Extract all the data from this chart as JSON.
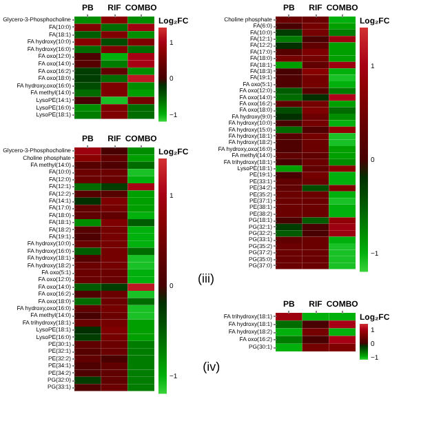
{
  "chart_data": [
    {
      "type": "heatmap",
      "clabel": "Log₂FC",
      "clim": [
        -1.2,
        1.4
      ],
      "cticks": [
        -1,
        0,
        1
      ],
      "categories": [
        "PB",
        "RIF",
        "COMBO"
      ],
      "y_categories": [
        "Glycero-3-Phosphocholine",
        "FA(10:0)",
        "FA(18:1)",
        "FA hydroxy(10:0)",
        "FA hydroxy(16:0)",
        "FA oxo(12:0)",
        "FA oxo(14:0)",
        "FA oxo(16:2)",
        "FA oxo(18:0)",
        "FA hydroxy,oxo(16:0)",
        "FA methyl(14:0)",
        "LysoPE(14:1)",
        "LysoPE(16:0)",
        "LysoPE(18:1)"
      ],
      "cells": [
        [
          -0.8,
          0.7,
          -0.8
        ],
        [
          0.6,
          -0.6,
          0.9
        ],
        [
          -0.5,
          0.6,
          -0.8
        ],
        [
          0.7,
          -0.4,
          0.6
        ],
        [
          -0.6,
          0.6,
          -0.6
        ],
        [
          0.1,
          -1.0,
          1.0
        ],
        [
          0.2,
          -0.7,
          1.0
        ],
        [
          -0.3,
          0.3,
          -0.8
        ],
        [
          -0.3,
          -0.6,
          1.2
        ],
        [
          -0.4,
          0.6,
          -0.8
        ],
        [
          -0.6,
          0.6,
          -0.9
        ],
        [
          0.0,
          -1.1,
          0.5
        ],
        [
          -0.8,
          0.6,
          -0.6
        ],
        [
          -0.7,
          0.6,
          -0.6
        ]
      ]
    },
    {
      "type": "heatmap",
      "clabel": "Log₂FC",
      "clim": [
        -1.2,
        1.4
      ],
      "cticks": [
        -1,
        0,
        1
      ],
      "categories": [
        "PB",
        "RIF",
        "COMBO"
      ],
      "y_categories": [
        "Glycero-3-Phosphocholine",
        "Choline phosphate",
        "FA methyl(14:0)",
        "FA(10:0)",
        "FA(12:0)",
        "FA(12:1)",
        "FA(12:2)",
        "FA(14:1)",
        "FA(17:0)",
        "FA(18:0)",
        "FA(18:1)",
        "FA(18:2)",
        "FA(19:1)",
        "FA hydroxy(10:0)",
        "FA hydroxy(16:0)",
        "FA hydroxy(18:1)",
        "FA hydroxy(18:2)",
        "FA oxo(5:1)",
        "FA oxo(12:0)",
        "FA oxo(14:0)",
        "FA oxo(16:2)",
        "FA oxo(18:0)",
        "FA hydroxy,oxo(16:0)",
        "FA methyl(14:0) ",
        "FA trihydroxy(18:1)",
        "LysoPE(18:1)",
        "LysoPE(16:0)",
        "PE(30:1)",
        "PE(32:1)",
        "PE(32:2)",
        "PE(34:1)",
        "PE(34:2)",
        "PG(32:0)",
        "PG(33:1)"
      ],
      "cells": [
        [
          0.9,
          0.0,
          -0.8
        ],
        [
          0.7,
          0.3,
          -0.9
        ],
        [
          0.2,
          0.1,
          -0.6
        ],
        [
          0.4,
          0.4,
          -1.1
        ],
        [
          0.4,
          0.4,
          -1.0
        ],
        [
          -0.6,
          -0.3,
          1.0
        ],
        [
          0.2,
          0.2,
          -0.9
        ],
        [
          -0.2,
          0.6,
          -0.9
        ],
        [
          0.3,
          0.5,
          -0.9
        ],
        [
          0.3,
          0.3,
          -1.0
        ],
        [
          -0.8,
          0.6,
          -0.5
        ],
        [
          0.2,
          0.5,
          -1.0
        ],
        [
          0.1,
          0.5,
          -1.0
        ],
        [
          0.4,
          0.5,
          -1.0
        ],
        [
          -0.5,
          0.5,
          -0.6
        ],
        [
          0.2,
          0.5,
          -1.1
        ],
        [
          0.4,
          0.5,
          -1.1
        ],
        [
          0.4,
          0.4,
          -1.0
        ],
        [
          0.4,
          0.4,
          -1.0
        ],
        [
          -0.5,
          -0.3,
          1.2
        ],
        [
          0.1,
          0.4,
          -1.1
        ],
        [
          -0.6,
          0.4,
          -0.6
        ],
        [
          0.3,
          0.5,
          -1.1
        ],
        [
          0.0,
          0.4,
          -1.1
        ],
        [
          0.4,
          0.5,
          -0.9
        ],
        [
          -0.2,
          0.6,
          -0.9
        ],
        [
          -0.3,
          0.5,
          -0.9
        ],
        [
          0.3,
          0.4,
          -0.7
        ],
        [
          0.2,
          0.4,
          -0.7
        ],
        [
          0.3,
          0.0,
          -0.7
        ],
        [
          0.1,
          0.3,
          -0.7
        ],
        [
          0.1,
          0.3,
          -0.7
        ],
        [
          -0.3,
          0.3,
          -0.7
        ],
        [
          0.1,
          0.4,
          -0.7
        ]
      ]
    },
    {
      "type": "heatmap",
      "title": "(iii)",
      "clabel": "Log₂FC",
      "clim": [
        -1.2,
        1.4
      ],
      "cticks": [
        -1,
        0,
        1
      ],
      "categories": [
        "PB",
        "RIF",
        "COMBO"
      ],
      "y_categories": [
        "Choline phosphate",
        "FA(6:0)",
        "FA(10:0)",
        "FA(12:1)",
        "FA(12:2)",
        "FA(17:0)",
        "FA(18:0)",
        "FA(18:1)",
        "FA(18:3)",
        "FA(19:1)",
        "FA oxo(5:1)",
        "FA oxo(12:0)",
        "FA oxo(14:0)",
        "FA oxo(16:2)",
        "FA oxo(18:0)",
        "FA hydroxy(9:0)",
        "FA hydroxy(10:0)",
        "FA hydroxy(15:0)",
        "FA hydroxy(18:1)",
        "FA hydroxy(18:2)",
        "FA hydroxy,oxo(16:0)",
        "FA methyl(14:0)",
        "FA trihydroxy(18:1)",
        "LysoPE(18:1)",
        "PE(19:1)",
        "PE(33:1)",
        "PE(34:2)",
        "PE(35:2)",
        "PE(37:1)",
        "PE(38:1)",
        "PE(38:2)",
        "PG(18:1)",
        "PG(32:1)",
        "PG(32:2)",
        "PG(33:1)",
        "PG(35:2)",
        "PG(37:2)",
        "PG(35:0)",
        "PG(37:0)"
      ],
      "cells": [
        [
          0.4,
          0.4,
          -1.0
        ],
        [
          0.0,
          0.5,
          -0.9
        ],
        [
          -0.3,
          0.5,
          -0.7
        ],
        [
          -0.7,
          0.0,
          0.9
        ],
        [
          -0.2,
          0.3,
          -0.9
        ],
        [
          0.2,
          0.6,
          -0.9
        ],
        [
          0.5,
          0.5,
          -0.9
        ],
        [
          -0.9,
          0.3,
          0.9
        ],
        [
          0.0,
          0.7,
          -1.0
        ],
        [
          0.1,
          0.5,
          -1.1
        ],
        [
          0.1,
          0.5,
          -1.0
        ],
        [
          -0.5,
          0.2,
          -0.7
        ],
        [
          -0.6,
          -0.2,
          1.1
        ],
        [
          0.3,
          0.5,
          -0.9
        ],
        [
          -0.4,
          0.6,
          -0.6
        ],
        [
          -0.2,
          0.4,
          -0.8
        ],
        [
          0.0,
          0.5,
          -1.0
        ],
        [
          -0.6,
          0.1,
          0.8
        ],
        [
          0.2,
          0.5,
          -1.1
        ],
        [
          0.1,
          0.4,
          -1.1
        ],
        [
          0.1,
          0.4,
          -0.9
        ],
        [
          0.3,
          0.3,
          -0.9
        ],
        [
          0.0,
          0.4,
          -0.8
        ],
        [
          -0.9,
          0.3,
          0.7
        ],
        [
          0.0,
          0.5,
          -1.0
        ],
        [
          0.3,
          0.4,
          -1.0
        ],
        [
          0.3,
          -0.4,
          0.6
        ],
        [
          0.4,
          0.4,
          -1.0
        ],
        [
          0.4,
          0.4,
          -1.1
        ],
        [
          0.4,
          0.4,
          -1.0
        ],
        [
          0.4,
          0.4,
          -1.0
        ],
        [
          0.0,
          -0.5,
          0.8
        ],
        [
          -0.3,
          0.0,
          0.9
        ],
        [
          -0.5,
          0.0,
          0.9
        ],
        [
          0.3,
          0.4,
          -1.0
        ],
        [
          0.4,
          0.4,
          -1.1
        ],
        [
          0.4,
          0.4,
          -1.1
        ],
        [
          0.4,
          0.4,
          -1.1
        ],
        [
          0.4,
          0.4,
          -1.1
        ]
      ]
    },
    {
      "type": "heatmap",
      "title": "(iv)",
      "clabel": "Log₂FC",
      "clim": [
        -1.2,
        1.4
      ],
      "cticks": [
        -1,
        0,
        1
      ],
      "categories": [
        "PB",
        "RIF",
        "COMBO"
      ],
      "y_categories": [
        "FA trihydroxy(18:1)",
        "FA hydroxy(18:1)",
        "FA hydroxy(18:2)",
        "FA oxo(16:2)",
        "PG(30:1)"
      ],
      "cells": [
        [
          0.9,
          -1.0,
          -1.0
        ],
        [
          -0.6,
          0.0,
          1.0
        ],
        [
          -1.0,
          0.5,
          -1.0
        ],
        [
          -0.7,
          0.0,
          1.0
        ],
        [
          -1.0,
          0.5,
          0.6
        ]
      ]
    }
  ]
}
